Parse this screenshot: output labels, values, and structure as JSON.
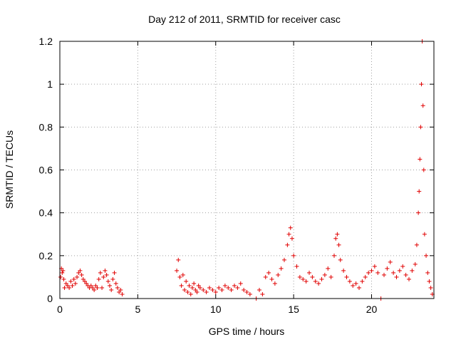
{
  "chart_data": {
    "type": "scatter",
    "title": "Day 212 of 2011, SRMTID for receiver casc",
    "xlabel": "GPS time / hours",
    "ylabel": "SRMTID / TECUs",
    "xlim": [
      0,
      24
    ],
    "ylim": [
      0,
      1.2
    ],
    "x_ticks": [
      "0",
      "5",
      "10",
      "15",
      "20"
    ],
    "y_ticks": [
      "0",
      "0.2",
      "0.4",
      "0.6",
      "0.8",
      "1",
      "1.2"
    ],
    "grid": true,
    "marker": "plus",
    "color": "#e00000",
    "series": [
      {
        "points": [
          [
            0.05,
            0.1
          ],
          [
            0.1,
            0.14
          ],
          [
            0.15,
            0.12
          ],
          [
            0.2,
            0.13
          ],
          [
            0.25,
            0.09
          ],
          [
            0.3,
            0.05
          ],
          [
            0.4,
            0.07
          ],
          [
            0.5,
            0.06
          ],
          [
            0.6,
            0.05
          ],
          [
            0.7,
            0.08
          ],
          [
            0.8,
            0.06
          ],
          [
            0.9,
            0.09
          ],
          [
            1.0,
            0.07
          ],
          [
            1.1,
            0.1
          ],
          [
            1.2,
            0.12
          ],
          [
            1.3,
            0.13
          ],
          [
            1.4,
            0.11
          ],
          [
            1.5,
            0.09
          ],
          [
            1.6,
            0.08
          ],
          [
            1.7,
            0.07
          ],
          [
            1.8,
            0.06
          ],
          [
            1.9,
            0.05
          ],
          [
            2.0,
            0.06
          ],
          [
            2.1,
            0.05
          ],
          [
            2.2,
            0.04
          ],
          [
            2.3,
            0.06
          ],
          [
            2.4,
            0.05
          ],
          [
            2.5,
            0.09
          ],
          [
            2.6,
            0.12
          ],
          [
            2.7,
            0.05
          ],
          [
            2.8,
            0.1
          ],
          [
            2.9,
            0.13
          ],
          [
            3.0,
            0.11
          ],
          [
            3.1,
            0.08
          ],
          [
            3.2,
            0.06
          ],
          [
            3.3,
            0.04
          ],
          [
            3.4,
            0.09
          ],
          [
            3.5,
            0.12
          ],
          [
            3.6,
            0.07
          ],
          [
            3.7,
            0.05
          ],
          [
            3.8,
            0.03
          ],
          [
            3.9,
            0.04
          ],
          [
            4.0,
            0.02
          ],
          [
            7.5,
            0.13
          ],
          [
            7.6,
            0.18
          ],
          [
            7.7,
            0.1
          ],
          [
            7.8,
            0.06
          ],
          [
            7.9,
            0.11
          ],
          [
            8.0,
            0.04
          ],
          [
            8.1,
            0.08
          ],
          [
            8.2,
            0.03
          ],
          [
            8.3,
            0.06
          ],
          [
            8.4,
            0.02
          ],
          [
            8.5,
            0.05
          ],
          [
            8.6,
            0.07
          ],
          [
            8.7,
            0.04
          ],
          [
            8.8,
            0.03
          ],
          [
            8.9,
            0.06
          ],
          [
            9.0,
            0.05
          ],
          [
            9.2,
            0.04
          ],
          [
            9.4,
            0.03
          ],
          [
            9.6,
            0.05
          ],
          [
            9.8,
            0.04
          ],
          [
            10.0,
            0.03
          ],
          [
            10.2,
            0.05
          ],
          [
            10.4,
            0.04
          ],
          [
            10.6,
            0.06
          ],
          [
            10.8,
            0.05
          ],
          [
            11.0,
            0.04
          ],
          [
            11.2,
            0.06
          ],
          [
            11.4,
            0.05
          ],
          [
            11.6,
            0.07
          ],
          [
            11.8,
            0.04
          ],
          [
            12.0,
            0.03
          ],
          [
            12.2,
            0.02
          ],
          [
            12.6,
            0.0
          ],
          [
            12.8,
            0.04
          ],
          [
            13.0,
            0.02
          ],
          [
            13.2,
            0.1
          ],
          [
            13.4,
            0.12
          ],
          [
            13.6,
            0.09
          ],
          [
            13.8,
            0.07
          ],
          [
            14.0,
            0.11
          ],
          [
            14.2,
            0.14
          ],
          [
            14.4,
            0.18
          ],
          [
            14.6,
            0.25
          ],
          [
            14.7,
            0.3
          ],
          [
            14.8,
            0.33
          ],
          [
            14.9,
            0.28
          ],
          [
            15.0,
            0.2
          ],
          [
            15.2,
            0.15
          ],
          [
            15.4,
            0.1
          ],
          [
            15.6,
            0.09
          ],
          [
            15.8,
            0.08
          ],
          [
            16.0,
            0.12
          ],
          [
            16.2,
            0.1
          ],
          [
            16.4,
            0.08
          ],
          [
            16.6,
            0.07
          ],
          [
            16.8,
            0.09
          ],
          [
            17.0,
            0.11
          ],
          [
            17.2,
            0.14
          ],
          [
            17.4,
            0.1
          ],
          [
            17.6,
            0.2
          ],
          [
            17.7,
            0.28
          ],
          [
            17.8,
            0.3
          ],
          [
            17.9,
            0.25
          ],
          [
            18.0,
            0.18
          ],
          [
            18.2,
            0.13
          ],
          [
            18.4,
            0.1
          ],
          [
            18.6,
            0.08
          ],
          [
            18.8,
            0.06
          ],
          [
            19.0,
            0.07
          ],
          [
            19.2,
            0.05
          ],
          [
            19.4,
            0.08
          ],
          [
            19.6,
            0.1
          ],
          [
            19.8,
            0.12
          ],
          [
            20.0,
            0.13
          ],
          [
            20.2,
            0.15
          ],
          [
            20.4,
            0.12
          ],
          [
            20.6,
            0.0
          ],
          [
            20.8,
            0.11
          ],
          [
            21.0,
            0.14
          ],
          [
            21.2,
            0.17
          ],
          [
            21.4,
            0.12
          ],
          [
            21.6,
            0.1
          ],
          [
            21.8,
            0.13
          ],
          [
            22.0,
            0.15
          ],
          [
            22.2,
            0.11
          ],
          [
            22.4,
            0.09
          ],
          [
            22.6,
            0.13
          ],
          [
            22.8,
            0.16
          ],
          [
            22.9,
            0.25
          ],
          [
            23.0,
            0.4
          ],
          [
            23.05,
            0.5
          ],
          [
            23.1,
            0.65
          ],
          [
            23.15,
            0.8
          ],
          [
            23.2,
            1.0
          ],
          [
            23.25,
            1.2
          ],
          [
            23.3,
            0.9
          ],
          [
            23.35,
            0.6
          ],
          [
            23.4,
            0.3
          ],
          [
            23.5,
            0.2
          ],
          [
            23.6,
            0.12
          ],
          [
            23.7,
            0.08
          ],
          [
            23.8,
            0.05
          ],
          [
            23.9,
            0.02
          ]
        ]
      }
    ]
  }
}
